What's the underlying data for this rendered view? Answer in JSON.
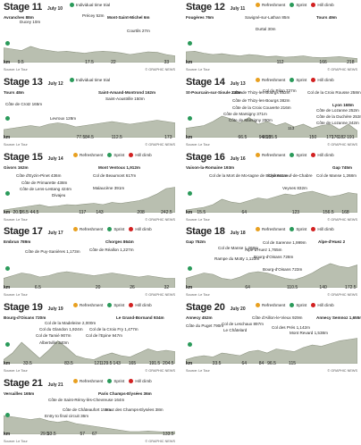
{
  "common": {
    "km_label": "km",
    "source": "Source: Le Tour",
    "credit": "© GRAPHIC NEWS",
    "refreshment": "Refreshment",
    "sprint": "Sprint",
    "hill_climb": "Hill climb",
    "itt": "Individual time trial"
  },
  "colors": {
    "refresh": "#e8a020",
    "sprint": "#2a9a5a",
    "climb": "#d22020",
    "itt": "#2a9a5a",
    "profile": "#b9bfb0",
    "profile_edge": "#8a917e"
  },
  "stages": [
    {
      "title": "Stage 11",
      "date": "July 10",
      "legend": [
        "itt"
      ],
      "labels": [
        {
          "t": "Avranches 88m",
          "b": true
        },
        {
          "t": "Ducey 10m"
        },
        {
          "t": "Précey 52m"
        },
        {
          "t": "Mont-Saint-Michel 6m",
          "b": true
        },
        {
          "t": "Courtils 27m"
        }
      ],
      "km": [
        "9.5",
        "17.5",
        "22",
        "33"
      ]
    },
    {
      "title": "Stage 12",
      "date": "July 11",
      "legend": [
        "refresh",
        "sprint",
        "climb"
      ],
      "labels": [
        {
          "t": "Fougères 76m",
          "b": true
        },
        {
          "t": "Savigné-sur-Lathan 85m"
        },
        {
          "t": "Tours 49m",
          "b": true
        },
        {
          "t": "Durtal 30m"
        }
      ],
      "km": [
        "112",
        "166",
        "218"
      ]
    },
    {
      "title": "Stage 13",
      "date": "July 12",
      "legend": [
        "itt"
      ],
      "labels": [
        {
          "t": "Tours 48m",
          "b": true
        },
        {
          "t": "Saint-Amand-Montrond 162m",
          "b": true
        },
        {
          "t": "Côte de Crotz 165m"
        },
        {
          "t": "Levroux 128m"
        },
        {
          "t": "Saint-Aoustrille 150m"
        }
      ],
      "km": [
        "77.5",
        "84.5",
        "112.5",
        "173"
      ]
    },
    {
      "title": "Stage 14",
      "date": "July 13",
      "legend": [
        "refresh",
        "sprint",
        "climb"
      ],
      "labels": [
        {
          "t": "St-Pourcain-sur-Sioule 240m",
          "b": true
        },
        {
          "t": "Col du Pilon 727m"
        },
        {
          "t": "Col de la Croix Rousse 258m"
        },
        {
          "t": "Lyon 168m",
          "b": true
        },
        {
          "t": "Côte de Thizy-les-Bourgs 552m"
        },
        {
          "t": "Côte de Thizy-les-Bourgs 382m"
        },
        {
          "t": "Côte de Lozanne 252m"
        },
        {
          "t": "Côte de la Croix Couverte 216m"
        },
        {
          "t": "Côte de la Duchère 253m"
        },
        {
          "t": "Côte de Marsigny 371m"
        },
        {
          "t": "Côte de Marsigny 290m"
        },
        {
          "t": "Côte de Lozanne 342m"
        },
        {
          "t": "113"
        }
      ],
      "km": [
        "66.5",
        "94",
        "98.5",
        "105.5",
        "150",
        "171",
        "176",
        "182",
        "191"
      ]
    },
    {
      "title": "Stage 15",
      "date": "July 14",
      "legend": [
        "refresh",
        "sprint",
        "climb"
      ],
      "labels": [
        {
          "t": "Givors 162m",
          "b": true
        },
        {
          "t": "Mont Ventoux 1,912m",
          "b": true
        },
        {
          "t": "Côte d'Eyzin-Pinet 436m"
        },
        {
          "t": "Col de Beaumont 617m"
        },
        {
          "t": "Côte de Primarette 438m"
        },
        {
          "t": "Côte de Lens-Lestang 424m"
        },
        {
          "t": "Malaucène 391m"
        },
        {
          "t": "Divajeu"
        }
      ],
      "km": [
        "20.5",
        "26.5",
        "44.5",
        "117",
        "143",
        "208",
        "242.5"
      ]
    },
    {
      "title": "Stage 16",
      "date": "July 16",
      "legend": [
        "refresh",
        "sprint",
        "climb"
      ],
      "labels": [
        {
          "t": "Vaison-la-Romaine 193m",
          "b": true
        },
        {
          "t": "Gap 745m",
          "b": true
        },
        {
          "t": "Châteauneuf-de-Chabre"
        },
        {
          "t": "Col de la Mort de Mo-tagne de Bluye 941m"
        },
        {
          "t": "Col de Manse 1,268m"
        },
        {
          "t": "Veynes 832m"
        }
      ],
      "km": [
        "15.5",
        "64",
        "123",
        "156.5",
        "168"
      ]
    },
    {
      "title": "Stage 17",
      "date": "July 17",
      "legend": [
        "refresh",
        "sprint",
        "climb"
      ],
      "labels": [
        {
          "t": "Embrun 789m",
          "b": true
        },
        {
          "t": "Chorges 864m",
          "b": true
        },
        {
          "t": "Côte de Puy-Sanières 1,173m"
        },
        {
          "t": "Côte de Réallon 1,227m"
        }
      ],
      "km": [
        "6.5",
        "20",
        "26",
        "32"
      ]
    },
    {
      "title": "Stage 18",
      "date": "July 18",
      "legend": [
        "refresh",
        "sprint",
        "climb"
      ],
      "labels": [
        {
          "t": "Gap 752m",
          "b": true
        },
        {
          "t": "Col de Sarenne 1,999m"
        },
        {
          "t": "Alpe-d'Huez 2",
          "b": true
        },
        {
          "t": "Col de Manse 1,268m"
        },
        {
          "t": "Alpe-d'Huez 1,765m"
        },
        {
          "t": "Rampe du Motty 1,123m"
        },
        {
          "t": "Bourg-d'Oisans 728m"
        },
        {
          "t": "Bourg-d'Oisans 723m"
        }
      ],
      "km": [
        "64",
        "110.5",
        "140",
        "172.5"
      ]
    },
    {
      "title": "Stage 19",
      "date": "July 19",
      "legend": [
        "refresh",
        "sprint",
        "climb"
      ],
      "labels": [
        {
          "t": "Bourg-d'Oisans 720m",
          "b": true
        },
        {
          "t": "Le Grand-Bornand 934m",
          "b": true
        },
        {
          "t": "Col de la Madeleine 2,000m"
        },
        {
          "t": "Col du Glandon 1,924m"
        },
        {
          "t": "Col de Tamié 907m"
        },
        {
          "t": "Albertville 340m"
        },
        {
          "t": "Col de l'Epine 947m"
        },
        {
          "t": "Col de la Croix Fry 1,477m"
        }
      ],
      "km": [
        "33.5",
        "83.5",
        "121",
        "129.5",
        "143",
        "165",
        "191.5",
        "204.5"
      ]
    },
    {
      "title": "Stage 20",
      "date": "July 20",
      "legend": [
        "refresh",
        "sprint",
        "climb"
      ],
      "labels": [
        {
          "t": "Annecy 452m",
          "b": true
        },
        {
          "t": "Annecy Semnoz 1,655m",
          "b": true
        },
        {
          "t": "Côte du Puget 790m"
        },
        {
          "t": "Col de Leschaux 897m"
        },
        {
          "t": "Le Châtelard"
        },
        {
          "t": "Côte d'Aillon-le-Vieux 929m"
        },
        {
          "t": "Col des Prés 1,142m"
        },
        {
          "t": "Mont Revard 1,538m"
        }
      ],
      "km": [
        "33.5",
        "64",
        "84",
        "96.5",
        "115"
      ]
    },
    {
      "title": "Stage 21",
      "date": "July 21",
      "legend": [
        "refresh",
        "sprint",
        "climb"
      ],
      "labels": [
        {
          "t": "Versailles 165m",
          "b": true
        },
        {
          "t": "Paris Champs-Elysées 36m",
          "b": true
        },
        {
          "t": "Côte de Saint-Rémy-lès-Chevreuse 164m"
        },
        {
          "t": "Côte de Châteaufort 155m"
        },
        {
          "t": "Entry to final circuit 36m"
        },
        {
          "t": "Haut des Champs-Elysées 38m"
        }
      ],
      "km": [
        "29.5",
        "33.5",
        "57",
        "67",
        "133.5"
      ]
    }
  ]
}
